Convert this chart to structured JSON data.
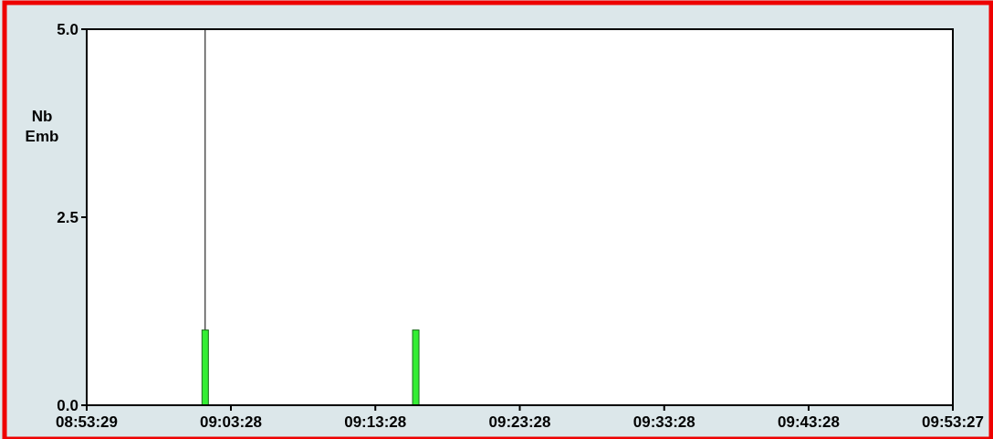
{
  "chart_data": {
    "type": "bar",
    "ylabel": "Nb\nEmb",
    "x": [
      9.0281,
      9.2711
    ],
    "values": [
      1,
      1
    ],
    "color": "#33ee33",
    "xlim": [
      8.89139,
      9.89083
    ],
    "xticks": [
      {
        "value": 8.89139,
        "label": "08:53:29"
      },
      {
        "value": 9.05778,
        "label": "09:03:28"
      },
      {
        "value": 9.22444,
        "label": "09:13:28"
      },
      {
        "value": 9.39111,
        "label": "09:23:28"
      },
      {
        "value": 9.55778,
        "label": "09:33:28"
      },
      {
        "value": 9.72444,
        "label": "09:43:28"
      },
      {
        "value": 9.89083,
        "label": "09:53:27"
      }
    ],
    "ylim": [
      0,
      5
    ],
    "yticks": [
      {
        "value": 0,
        "label": "0.0"
      },
      {
        "value": 2.5,
        "label": "2.5"
      },
      {
        "value": 5,
        "label": "5.0"
      }
    ],
    "ref_lines": [
      {
        "axis": "x",
        "value": 9.0281,
        "color": "#000000"
      }
    ],
    "grid": false
  }
}
